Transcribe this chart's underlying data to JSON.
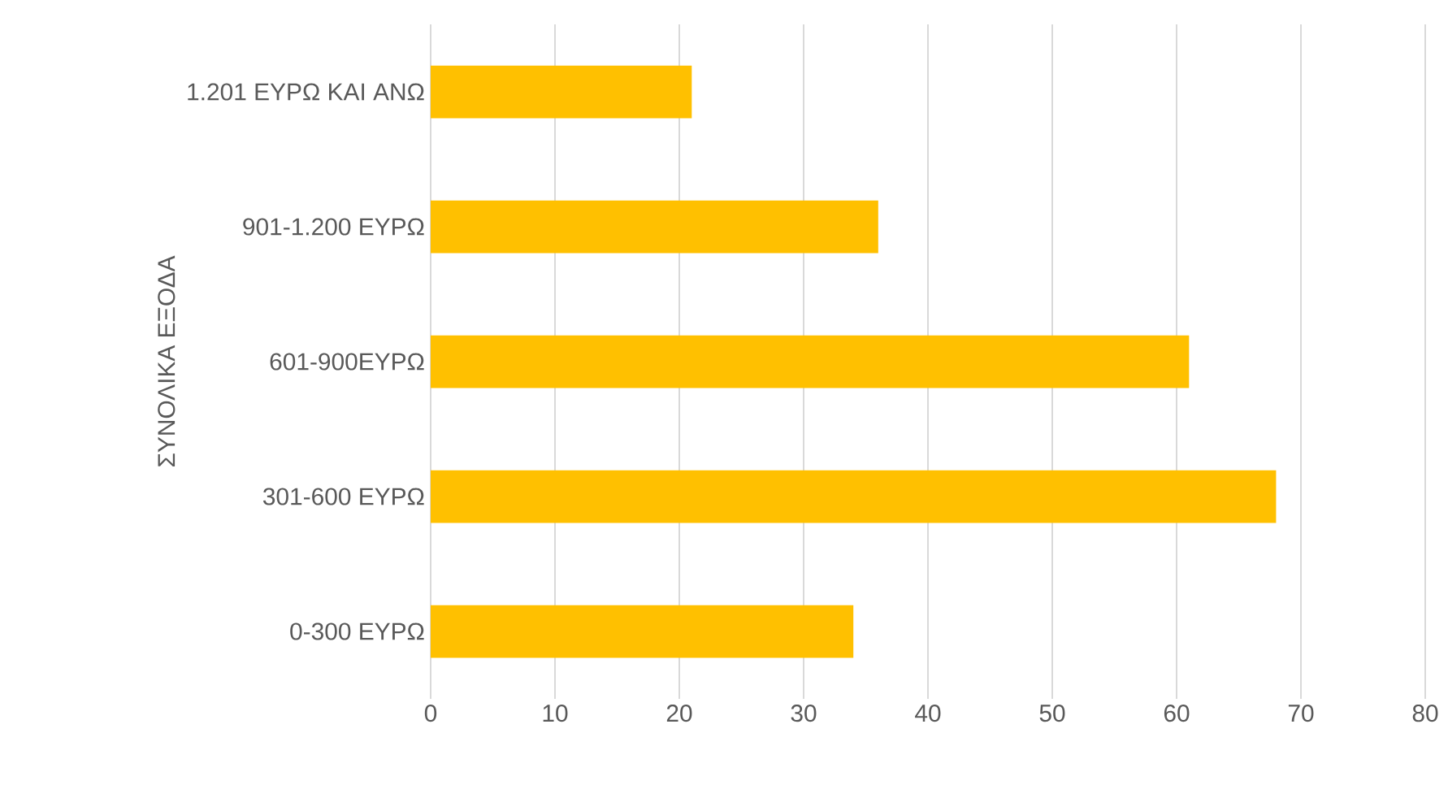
{
  "chart_data": {
    "type": "bar",
    "orientation": "horizontal",
    "ylabel": "ΣΥΝΟΛΙΚΑ ΕΞΟΔΑ",
    "categories": [
      "1.201 ΕΥΡΩ ΚΑΙ ΑΝΩ",
      "901-1.200 ΕΥΡΩ",
      "601-900ΕΥΡΩ",
      "301-600 ΕΥΡΩ",
      "0-300 ΕΥΡΩ"
    ],
    "values": [
      21,
      36,
      61,
      68,
      34
    ],
    "color": "#ffc000",
    "xlim": [
      0,
      80
    ],
    "xticks": [
      0,
      10,
      20,
      30,
      40,
      50,
      60,
      70,
      80
    ],
    "grid": "x"
  }
}
